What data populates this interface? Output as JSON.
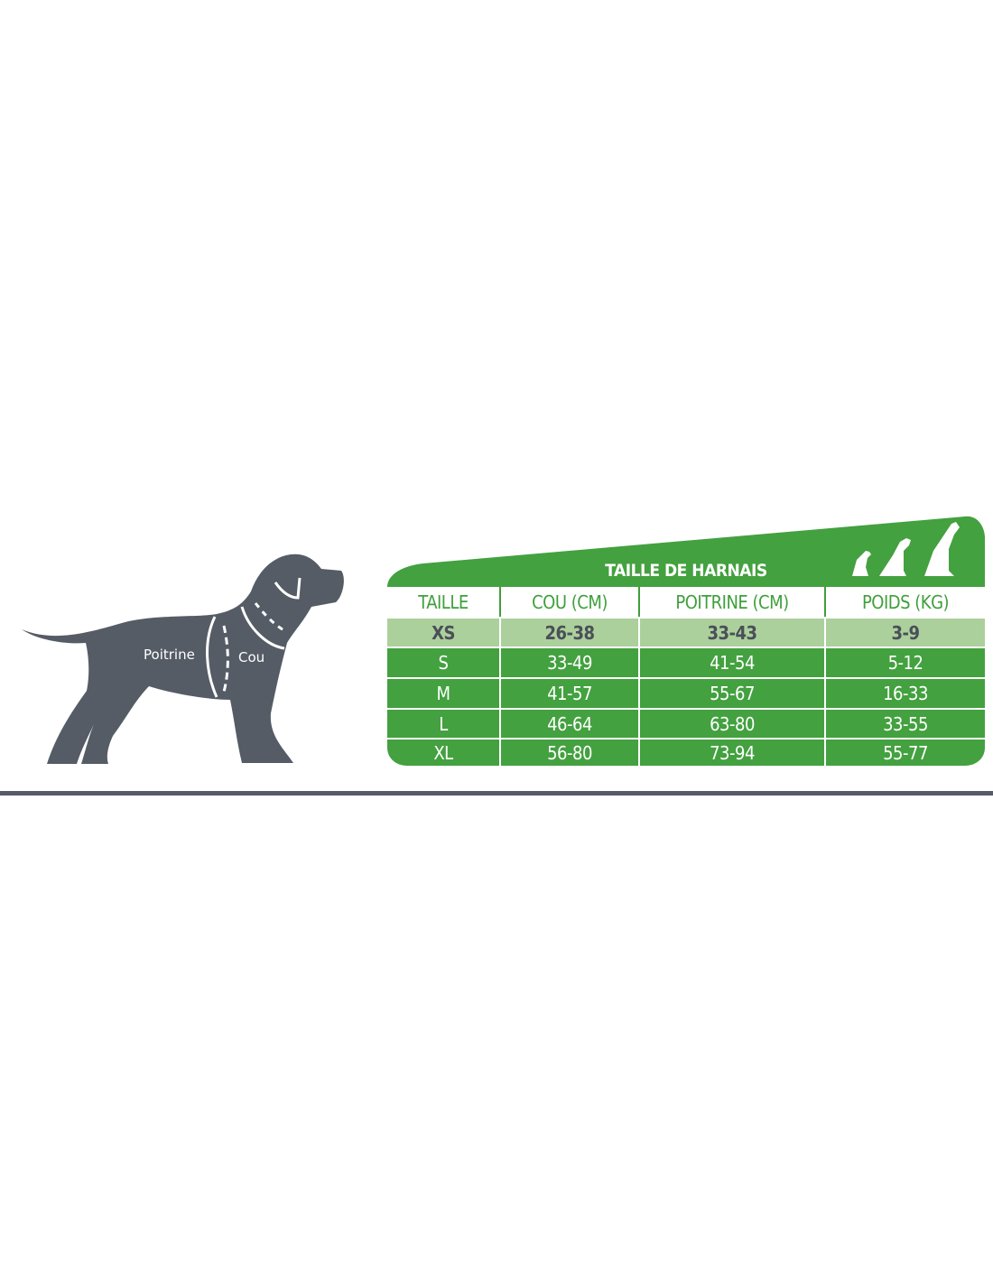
{
  "illustration": {
    "labels": {
      "chest": "Poitrine",
      "neck": "Cou"
    },
    "silhouette_color": "#555c66"
  },
  "size_chart": {
    "title": "TAILLE DE HARNAIS",
    "icon": "three-dogs-sizes-icon",
    "accent_color": "#43a13f",
    "highlight_color": "#acd09c",
    "columns": [
      "TAILLE",
      "COU (CM)",
      "POITRINE (CM)",
      "POIDS (KG)"
    ],
    "rows": [
      [
        "XS",
        "26-38",
        "33-43",
        "3-9"
      ],
      [
        "S",
        "33-49",
        "41-54",
        "5-12"
      ],
      [
        "M",
        "41-57",
        "55-67",
        "16-33"
      ],
      [
        "L",
        "46-64",
        "63-80",
        "33-55"
      ],
      [
        "XL",
        "56-80",
        "73-94",
        "55-77"
      ]
    ]
  }
}
